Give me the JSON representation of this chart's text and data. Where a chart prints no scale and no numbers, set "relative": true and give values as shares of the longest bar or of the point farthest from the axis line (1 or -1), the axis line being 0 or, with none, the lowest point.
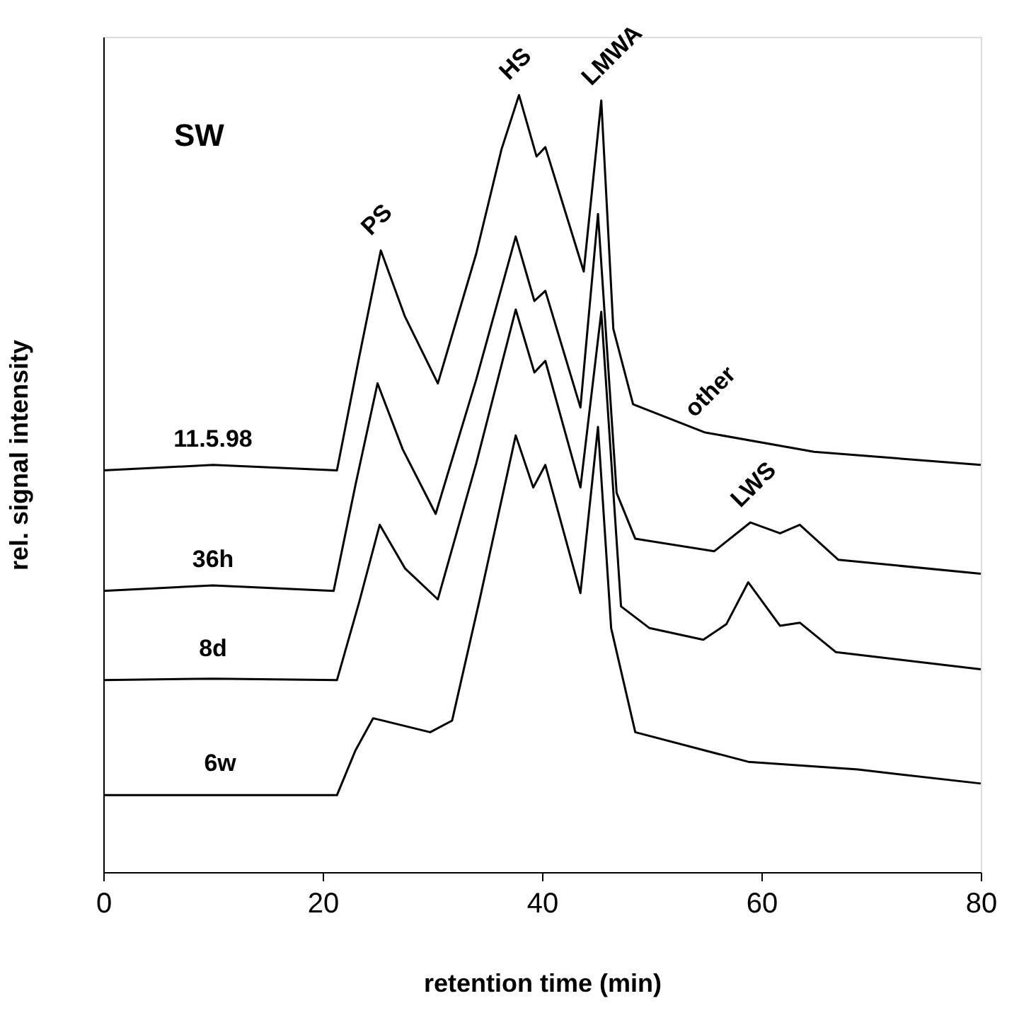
{
  "chart_data": {
    "type": "line",
    "relative": true,
    "xlabel": "retention time (min)",
    "ylabel": "rel. signal intensity",
    "xlim": [
      0,
      80
    ],
    "xticks": [
      0,
      20,
      40,
      60,
      80
    ],
    "grid": false,
    "legend": false,
    "marker": "none",
    "line_style": "solid",
    "annotations": [
      "SW",
      {
        "text": "PS",
        "x": 25.3,
        "y": 0.8
      },
      {
        "text": "HS",
        "x": 37.9,
        "y": 1.0
      },
      {
        "text": "LMWA",
        "x": 45.4,
        "y": 0.993
      },
      {
        "text": "other",
        "x": 54.8,
        "y": 0.566
      },
      {
        "text": "LWS",
        "x": 59,
        "y": 0.45
      }
    ],
    "series": [
      {
        "name": "11.5.98",
        "color": "#000000",
        "x": [
          0,
          10,
          21.3,
          23.3,
          25.3,
          27.5,
          30.5,
          34,
          36.3,
          37.9,
          39.5,
          40.3,
          43.8,
          45.4,
          46.5,
          48.3,
          54.8,
          64.8,
          80
        ],
        "values": [
          0.517,
          0.524,
          0.517,
          0.661,
          0.8,
          0.715,
          0.629,
          0.796,
          0.93,
          1.0,
          0.921,
          0.933,
          0.773,
          0.993,
          0.699,
          0.602,
          0.566,
          0.541,
          0.524
        ]
      },
      {
        "name": "36h",
        "color": "#000000",
        "x": [
          0,
          10,
          21,
          23,
          25,
          27.3,
          30.3,
          34,
          37.6,
          39.3,
          40.3,
          43.5,
          45.1,
          46.8,
          48.5,
          55.7,
          59,
          61.7,
          63.5,
          67,
          80
        ],
        "values": [
          0.362,
          0.369,
          0.362,
          0.499,
          0.629,
          0.544,
          0.461,
          0.634,
          0.818,
          0.735,
          0.748,
          0.598,
          0.847,
          0.488,
          0.429,
          0.413,
          0.45,
          0.436,
          0.447,
          0.402,
          0.384
        ]
      },
      {
        "name": "8d",
        "color": "#000000",
        "x": [
          0,
          10,
          21.3,
          23.3,
          25.2,
          27.5,
          30.5,
          34,
          37.6,
          39.3,
          40.3,
          43.5,
          45.4,
          47.2,
          49.8,
          54.7,
          56.8,
          58.8,
          61.7,
          63.5,
          66.8,
          80
        ],
        "values": [
          0.247,
          0.249,
          0.247,
          0.346,
          0.447,
          0.391,
          0.351,
          0.526,
          0.724,
          0.643,
          0.658,
          0.495,
          0.721,
          0.342,
          0.314,
          0.299,
          0.319,
          0.373,
          0.317,
          0.321,
          0.283,
          0.261
        ]
      },
      {
        "name": "6w",
        "color": "#000000",
        "x": [
          0,
          21.3,
          23,
          24.6,
          29.8,
          31.8,
          34.3,
          37.6,
          39.2,
          40.3,
          43.5,
          45.1,
          46.3,
          48.5,
          58.8,
          68.8,
          80
        ],
        "values": [
          0.099,
          0.099,
          0.157,
          0.198,
          0.18,
          0.195,
          0.35,
          0.562,
          0.495,
          0.524,
          0.359,
          0.573,
          0.314,
          0.18,
          0.142,
          0.132,
          0.114
        ]
      }
    ]
  }
}
